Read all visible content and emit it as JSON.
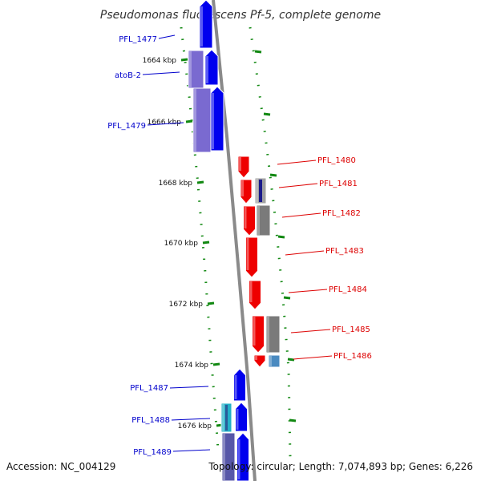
{
  "title": "Pseudomonas fluorescens Pf-5, complete genome",
  "accession": "Accession: NC_004129",
  "summary": "Topology: circular; Length: 7,074,893 bp; Genes: 6,226",
  "colors": {
    "forward_label": "#0000cc",
    "reverse_label": "#dd0000",
    "forward_gene": "#0000ee",
    "reverse_gene": "#ee0000",
    "feature_purple": "#7a6ad0",
    "feature_gray": "#7a7a7a",
    "feature_cyan": "#22b0c8",
    "feature_steel": "#4a8ac0",
    "backbone": "#8a8a8a",
    "tick": "#118811"
  },
  "scale_ticks": [
    "1664 kbp",
    "1666 kbp",
    "1668 kbp",
    "1670 kbp",
    "1672 kbp",
    "1674 kbp",
    "1676 kbp"
  ],
  "forward_labels": [
    "PFL_1477",
    "atoB-2",
    "PFL_1479",
    "PFL_1487",
    "PFL_1488",
    "PFL_1489"
  ],
  "reverse_labels": [
    "PFL_1480",
    "PFL_1481",
    "PFL_1482",
    "PFL_1483",
    "PFL_1484",
    "PFL_1485",
    "PFL_1486"
  ]
}
